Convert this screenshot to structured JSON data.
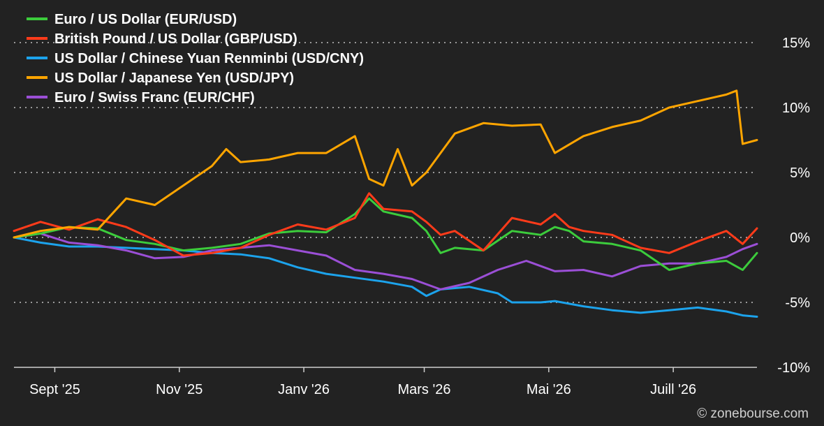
{
  "chart_data": {
    "type": "line",
    "title": "",
    "xlabel": "",
    "ylabel": "",
    "x_ticks": [
      "Sept '25",
      "Nov '25",
      "Janv '26",
      "Mars '26",
      "Mai '26",
      "Juill '26"
    ],
    "y_ticks": [
      "15%",
      "10%",
      "5%",
      "0%",
      "-5%",
      "-10%"
    ],
    "ylim": [
      -10,
      15
    ],
    "x_domain": [
      "2025-08-12",
      "2026-08-11"
    ],
    "grid": "horizontal dotted",
    "legend_position": "top-left",
    "background": "#222222",
    "series": [
      {
        "name": "Euro / US Dollar (EUR/USD)",
        "color": "#3ccc3c",
        "points": [
          [
            "2025-08-12",
            0
          ],
          [
            "2025-08-25",
            0.3
          ],
          [
            "2025-09-08",
            0.8
          ],
          [
            "2025-09-22",
            0.7
          ],
          [
            "2025-10-06",
            -0.2
          ],
          [
            "2025-10-20",
            -0.5
          ],
          [
            "2025-11-03",
            -1.0
          ],
          [
            "2025-11-17",
            -0.8
          ],
          [
            "2025-12-01",
            -0.5
          ],
          [
            "2025-12-15",
            0.3
          ],
          [
            "2025-12-29",
            0.5
          ],
          [
            "2026-01-12",
            0.4
          ],
          [
            "2026-01-26",
            1.8
          ],
          [
            "2026-02-02",
            3.0
          ],
          [
            "2026-02-09",
            2.0
          ],
          [
            "2026-02-23",
            1.5
          ],
          [
            "2026-03-02",
            0.5
          ],
          [
            "2026-03-09",
            -1.2
          ],
          [
            "2026-03-16",
            -0.8
          ],
          [
            "2026-03-30",
            -1.0
          ],
          [
            "2026-04-13",
            0.5
          ],
          [
            "2026-04-27",
            0.2
          ],
          [
            "2026-05-04",
            0.8
          ],
          [
            "2026-05-11",
            0.5
          ],
          [
            "2026-05-18",
            -0.3
          ],
          [
            "2026-06-01",
            -0.5
          ],
          [
            "2026-06-15",
            -1.0
          ],
          [
            "2026-06-29",
            -2.5
          ],
          [
            "2026-07-13",
            -2.0
          ],
          [
            "2026-07-27",
            -1.8
          ],
          [
            "2026-08-04",
            -2.5
          ],
          [
            "2026-08-11",
            -1.2
          ]
        ]
      },
      {
        "name": "British Pound / US Dollar (GBP/USD)",
        "color": "#ff3b1a",
        "points": [
          [
            "2025-08-12",
            0.5
          ],
          [
            "2025-08-25",
            1.2
          ],
          [
            "2025-09-08",
            0.6
          ],
          [
            "2025-09-22",
            1.4
          ],
          [
            "2025-10-06",
            0.8
          ],
          [
            "2025-10-20",
            -0.2
          ],
          [
            "2025-11-03",
            -1.4
          ],
          [
            "2025-11-17",
            -1.2
          ],
          [
            "2025-12-01",
            -0.8
          ],
          [
            "2025-12-15",
            0.2
          ],
          [
            "2025-12-29",
            1.0
          ],
          [
            "2026-01-12",
            0.6
          ],
          [
            "2026-01-26",
            1.5
          ],
          [
            "2026-02-02",
            3.4
          ],
          [
            "2026-02-09",
            2.2
          ],
          [
            "2026-02-23",
            2.0
          ],
          [
            "2026-03-02",
            1.2
          ],
          [
            "2026-03-09",
            0.2
          ],
          [
            "2026-03-16",
            0.5
          ],
          [
            "2026-03-30",
            -1.0
          ],
          [
            "2026-04-13",
            1.5
          ],
          [
            "2026-04-27",
            1.0
          ],
          [
            "2026-05-04",
            1.8
          ],
          [
            "2026-05-11",
            0.8
          ],
          [
            "2026-05-18",
            0.5
          ],
          [
            "2026-06-01",
            0.2
          ],
          [
            "2026-06-15",
            -0.8
          ],
          [
            "2026-06-29",
            -1.2
          ],
          [
            "2026-07-13",
            -0.3
          ],
          [
            "2026-07-27",
            0.5
          ],
          [
            "2026-08-04",
            -0.5
          ],
          [
            "2026-08-11",
            0.7
          ]
        ]
      },
      {
        "name": "US Dollar / Chinese Yuan Renminbi (USD/CNY)",
        "color": "#1ca3ec",
        "points": [
          [
            "2025-08-12",
            0
          ],
          [
            "2025-08-25",
            -0.4
          ],
          [
            "2025-09-08",
            -0.7
          ],
          [
            "2025-09-22",
            -0.7
          ],
          [
            "2025-10-06",
            -0.8
          ],
          [
            "2025-10-20",
            -0.9
          ],
          [
            "2025-11-03",
            -1.0
          ],
          [
            "2025-11-17",
            -1.2
          ],
          [
            "2025-12-01",
            -1.3
          ],
          [
            "2025-12-15",
            -1.6
          ],
          [
            "2025-12-29",
            -2.3
          ],
          [
            "2026-01-12",
            -2.8
          ],
          [
            "2026-01-26",
            -3.1
          ],
          [
            "2026-02-09",
            -3.4
          ],
          [
            "2026-02-23",
            -3.8
          ],
          [
            "2026-03-02",
            -4.5
          ],
          [
            "2026-03-09",
            -4.0
          ],
          [
            "2026-03-23",
            -3.8
          ],
          [
            "2026-04-06",
            -4.3
          ],
          [
            "2026-04-13",
            -5.0
          ],
          [
            "2026-04-27",
            -5.0
          ],
          [
            "2026-05-04",
            -4.9
          ],
          [
            "2026-05-18",
            -5.3
          ],
          [
            "2026-06-01",
            -5.6
          ],
          [
            "2026-06-15",
            -5.8
          ],
          [
            "2026-06-29",
            -5.6
          ],
          [
            "2026-07-13",
            -5.4
          ],
          [
            "2026-07-27",
            -5.7
          ],
          [
            "2026-08-04",
            -6.0
          ],
          [
            "2026-08-11",
            -6.1
          ]
        ]
      },
      {
        "name": "US Dollar / Japanese Yen (USD/JPY)",
        "color": "#ffa500",
        "points": [
          [
            "2025-08-12",
            0
          ],
          [
            "2025-08-25",
            0.5
          ],
          [
            "2025-09-08",
            0.8
          ],
          [
            "2025-09-22",
            0.6
          ],
          [
            "2025-10-06",
            3.0
          ],
          [
            "2025-10-20",
            2.5
          ],
          [
            "2025-11-03",
            4.0
          ],
          [
            "2025-11-17",
            5.5
          ],
          [
            "2025-11-24",
            6.8
          ],
          [
            "2025-12-01",
            5.8
          ],
          [
            "2025-12-15",
            6.0
          ],
          [
            "2025-12-29",
            6.5
          ],
          [
            "2026-01-12",
            6.5
          ],
          [
            "2026-01-26",
            7.8
          ],
          [
            "2026-02-02",
            4.5
          ],
          [
            "2026-02-09",
            4.0
          ],
          [
            "2026-02-16",
            6.8
          ],
          [
            "2026-02-23",
            4.0
          ],
          [
            "2026-03-02",
            5.0
          ],
          [
            "2026-03-09",
            6.5
          ],
          [
            "2026-03-16",
            8.0
          ],
          [
            "2026-03-30",
            8.8
          ],
          [
            "2026-04-13",
            8.6
          ],
          [
            "2026-04-27",
            8.7
          ],
          [
            "2026-05-04",
            6.5
          ],
          [
            "2026-05-18",
            7.8
          ],
          [
            "2026-06-01",
            8.5
          ],
          [
            "2026-06-15",
            9.0
          ],
          [
            "2026-06-29",
            10.0
          ],
          [
            "2026-07-13",
            10.5
          ],
          [
            "2026-07-27",
            11.0
          ],
          [
            "2026-08-01",
            11.3
          ],
          [
            "2026-08-04",
            7.2
          ],
          [
            "2026-08-11",
            7.5
          ]
        ]
      },
      {
        "name": "Euro / Swiss Franc (EUR/CHF)",
        "color": "#9b4fd6",
        "points": [
          [
            "2025-08-12",
            0
          ],
          [
            "2025-08-25",
            0.3
          ],
          [
            "2025-09-08",
            -0.4
          ],
          [
            "2025-09-22",
            -0.6
          ],
          [
            "2025-10-06",
            -1.0
          ],
          [
            "2025-10-20",
            -1.6
          ],
          [
            "2025-11-03",
            -1.5
          ],
          [
            "2025-11-17",
            -1.0
          ],
          [
            "2025-12-01",
            -0.8
          ],
          [
            "2025-12-15",
            -0.6
          ],
          [
            "2025-12-29",
            -1.0
          ],
          [
            "2026-01-12",
            -1.4
          ],
          [
            "2026-01-26",
            -2.5
          ],
          [
            "2026-02-09",
            -2.8
          ],
          [
            "2026-02-23",
            -3.2
          ],
          [
            "2026-03-09",
            -4.0
          ],
          [
            "2026-03-23",
            -3.5
          ],
          [
            "2026-04-06",
            -2.5
          ],
          [
            "2026-04-20",
            -1.8
          ],
          [
            "2026-05-04",
            -2.6
          ],
          [
            "2026-05-18",
            -2.5
          ],
          [
            "2026-06-01",
            -3.0
          ],
          [
            "2026-06-15",
            -2.2
          ],
          [
            "2026-06-29",
            -2.0
          ],
          [
            "2026-07-13",
            -2.0
          ],
          [
            "2026-07-27",
            -1.5
          ],
          [
            "2026-08-04",
            -0.9
          ],
          [
            "2026-08-11",
            -0.5
          ]
        ]
      }
    ]
  },
  "copyright": "© zonebourse.com"
}
